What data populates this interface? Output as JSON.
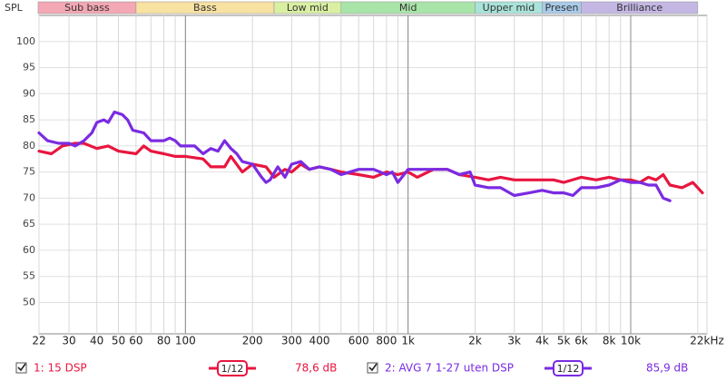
{
  "chart_data": {
    "type": "line",
    "y_axis_label": "SPL",
    "log_x": true,
    "grid": true,
    "xlim": [
      22,
      22000
    ],
    "ylim": [
      44,
      105
    ],
    "yticks": [
      50,
      55,
      60,
      65,
      70,
      75,
      80,
      85,
      90,
      95,
      100
    ],
    "xticks": [
      22,
      30,
      40,
      50,
      60,
      80,
      100,
      200,
      300,
      400,
      600,
      800,
      {
        "value": 1000,
        "label": "1k"
      },
      {
        "value": 2000,
        "label": "2k"
      },
      {
        "value": 3000,
        "label": "3k"
      },
      {
        "value": 4000,
        "label": "4k"
      },
      {
        "value": 5000,
        "label": "5k"
      },
      {
        "value": 6000,
        "label": "6k"
      },
      {
        "value": 8000,
        "label": "8k"
      },
      {
        "value": 10000,
        "label": "10k"
      },
      {
        "value": 22000,
        "label": "22kHz"
      }
    ],
    "xgrid_minor": [
      20,
      70,
      90,
      500,
      700,
      900,
      7000,
      9000,
      20000
    ],
    "xgrid_major": [
      100,
      1000,
      10000
    ],
    "bands": [
      {
        "name": "Sub bass",
        "from": 20,
        "to": 60,
        "color": "#f4a7b4"
      },
      {
        "name": "Bass",
        "from": 60,
        "to": 250,
        "color": "#f8e2a2"
      },
      {
        "name": "Low mid",
        "from": 250,
        "to": 500,
        "color": "#d9efa2"
      },
      {
        "name": "Mid",
        "from": 500,
        "to": 2000,
        "color": "#a9e4a9"
      },
      {
        "name": "Upper mid",
        "from": 2000,
        "to": 4000,
        "color": "#a9e3d9"
      },
      {
        "name": "Presen",
        "from": 4000,
        "to": 6000,
        "color": "#a9cbea"
      },
      {
        "name": "Brilliance",
        "from": 6000,
        "to": 20000,
        "color": "#c4b7e4"
      }
    ],
    "series": [
      {
        "name": "1: 15 DSP",
        "color": "#e8163f",
        "smoothing": "1/12",
        "level": "78,6 dB",
        "x": [
          22,
          25,
          28,
          32,
          35,
          40,
          45,
          50,
          60,
          65,
          70,
          80,
          90,
          100,
          120,
          130,
          150,
          160,
          180,
          200,
          230,
          250,
          280,
          300,
          330,
          360,
          400,
          450,
          500,
          600,
          700,
          800,
          900,
          1000,
          1100,
          1300,
          1500,
          1700,
          2000,
          2300,
          2600,
          3000,
          3500,
          4000,
          4500,
          5000,
          6000,
          7000,
          8000,
          9000,
          10000,
          11000,
          12000,
          13000,
          14000,
          15000,
          17000,
          19000,
          21000
        ],
        "values": [
          79,
          78.5,
          80,
          80.5,
          80.5,
          79.5,
          80,
          79,
          78.5,
          80,
          79,
          78.5,
          78,
          78,
          77.5,
          76,
          76,
          78,
          75,
          76.5,
          76,
          74,
          75.5,
          75,
          76.5,
          75.5,
          76,
          75.5,
          75,
          74.5,
          74,
          75,
          74.5,
          75,
          74,
          75.5,
          75.5,
          74.5,
          74,
          73.5,
          74,
          73.5,
          73.5,
          73.5,
          73.5,
          73,
          74,
          73.5,
          74,
          73.5,
          73.5,
          73,
          74,
          73.5,
          74.5,
          72.5,
          72,
          73,
          71
        ]
      },
      {
        "name": "2: AVG 7 1-27 uten DSP",
        "color": "#7a2be2",
        "smoothing": "1/12",
        "level": "85,9 dB",
        "x": [
          22,
          24,
          27,
          30,
          32,
          35,
          38,
          40,
          43,
          45,
          48,
          52,
          55,
          58,
          65,
          70,
          80,
          85,
          90,
          95,
          110,
          120,
          130,
          140,
          150,
          160,
          170,
          180,
          200,
          220,
          230,
          240,
          260,
          280,
          300,
          330,
          360,
          400,
          450,
          500,
          600,
          700,
          800,
          850,
          900,
          1000,
          1100,
          1300,
          1500,
          1700,
          1900,
          2000,
          2300,
          2600,
          3000,
          3500,
          4000,
          4500,
          5000,
          5500,
          6000,
          7000,
          8000,
          9000,
          10000,
          11000,
          12000,
          13000,
          14000,
          15000
        ],
        "values": [
          82.5,
          81,
          80.5,
          80.5,
          80,
          81,
          82.5,
          84.5,
          85,
          84.5,
          86.5,
          86,
          85,
          83,
          82.5,
          81,
          81,
          81.5,
          81,
          80,
          80,
          78.5,
          79.5,
          79,
          81,
          79.5,
          78.5,
          77,
          76.5,
          74,
          73,
          73.5,
          76,
          74,
          76.5,
          77,
          75.5,
          76,
          75.5,
          74.5,
          75.5,
          75.5,
          74.5,
          75,
          73,
          75.5,
          75.5,
          75.5,
          75.5,
          74.5,
          75,
          72.5,
          72,
          72,
          70.5,
          71,
          71.5,
          71,
          71,
          70.5,
          72,
          72,
          72.5,
          73.5,
          73,
          73,
          72.5,
          72.5,
          70,
          69.5
        ]
      }
    ]
  }
}
